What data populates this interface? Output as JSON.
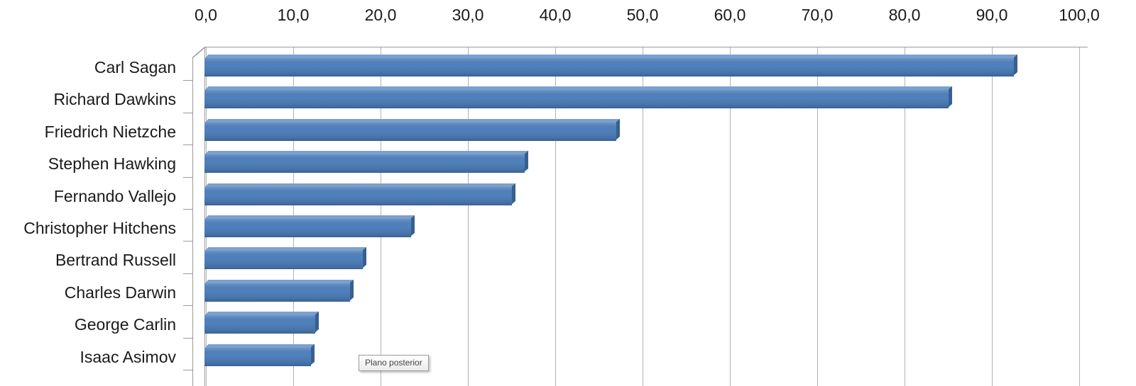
{
  "chart_data": {
    "type": "bar",
    "orientation": "horizontal",
    "title": "",
    "xlabel": "",
    "ylabel": "",
    "xlim": [
      0,
      100
    ],
    "gridlines": true,
    "bar_color": "#4f81bd",
    "x_ticks": [
      "0,0",
      "10,0",
      "20,0",
      "30,0",
      "40,0",
      "50,0",
      "60,0",
      "70,0",
      "80,0",
      "90,0",
      "100,0"
    ],
    "categories": [
      "Carl Sagan",
      "Richard Dawkins",
      "Friedrich Nietzche",
      "Stephen Hawking",
      "Fernando Vallejo",
      "Christopher Hitchens",
      "Bertrand Russell",
      "Charles Darwin",
      "George Carlin",
      "Isaac Asimov"
    ],
    "values": [
      92.5,
      85.0,
      47.0,
      36.5,
      35.0,
      23.5,
      18.0,
      16.5,
      12.5,
      12.0
    ]
  },
  "tooltip": {
    "label": "Plano posterior"
  }
}
